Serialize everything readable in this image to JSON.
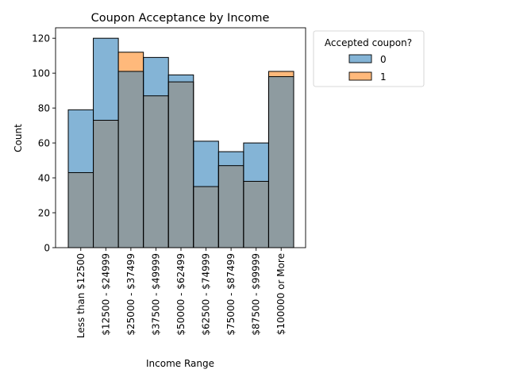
{
  "colors": {
    "series0_fill": "#1f77b4",
    "series1_fill": "#ff7f0e",
    "bar_edge": "#000000",
    "overlap_fill": "#8e9ba0",
    "background": "#ffffff"
  },
  "chart_data": {
    "type": "bar",
    "title": "Coupon Acceptance by Income",
    "xlabel": "Income Range",
    "ylabel": "Count",
    "ylim": [
      0,
      126
    ],
    "yticks": [
      0,
      20,
      40,
      60,
      80,
      100,
      120
    ],
    "grid": false,
    "categories": [
      "Less than $12500",
      "$12500 - $24999",
      "$25000 - $37499",
      "$37500 - $49999",
      "$50000 - $62499",
      "$62500 - $74999",
      "$75000 - $87499",
      "$87500 - $99999",
      "$100000 or More"
    ],
    "series": [
      {
        "name": "0",
        "values": [
          79,
          120,
          101,
          109,
          99,
          61,
          55,
          60,
          98
        ]
      },
      {
        "name": "1",
        "values": [
          43,
          73,
          112,
          87,
          95,
          35,
          47,
          38,
          101
        ]
      }
    ],
    "legend": {
      "title": "Accepted coupon?",
      "placement": "outside-upper-right"
    }
  }
}
